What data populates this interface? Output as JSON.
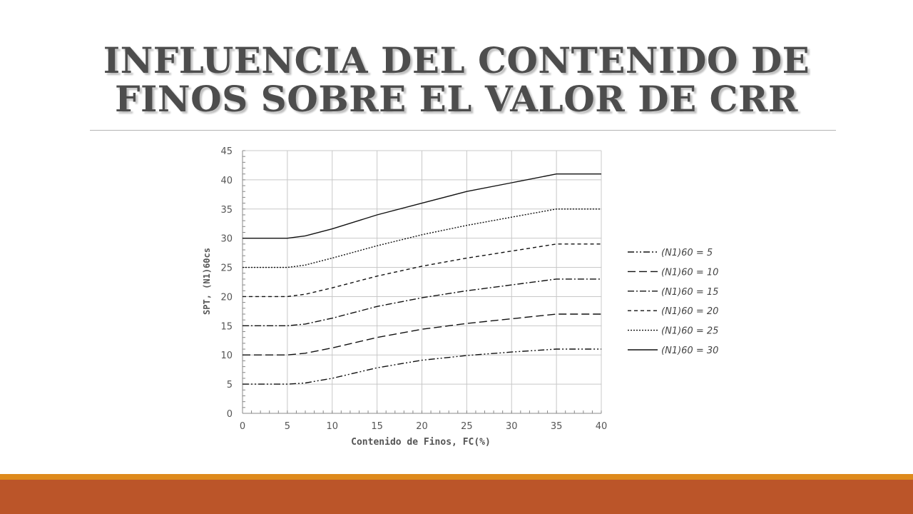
{
  "slide": {
    "title_line1": "INFLUENCIA DEL CONTENIDO DE",
    "title_line2": "FINOS SOBRE EL VALOR DE CRR"
  },
  "colors": {
    "title": "#4d4d4d",
    "accent_band_top": "#de8a1c",
    "accent_band_bottom": "#bb5529",
    "grid": "#c8c8c8",
    "line": "#111111"
  },
  "chart_data": {
    "type": "line",
    "title": "",
    "xlabel": "Contenido de Finos, FC(%)",
    "ylabel": "SPT, (N1)60cs",
    "xlim": [
      0,
      40
    ],
    "ylim": [
      0,
      45
    ],
    "xticks": [
      0,
      5,
      10,
      15,
      20,
      25,
      30,
      35,
      40
    ],
    "yticks": [
      0,
      5,
      10,
      15,
      20,
      25,
      30,
      35,
      40,
      45
    ],
    "grid": true,
    "legend_position": "right",
    "series": [
      {
        "name": "(N1)60 = 5",
        "dash": "dash-dot-dot",
        "x": [
          0,
          5,
          7,
          10,
          15,
          20,
          25,
          30,
          35,
          40
        ],
        "y": [
          5,
          5,
          5.2,
          6,
          7.8,
          9.1,
          9.9,
          10.5,
          11,
          11
        ]
      },
      {
        "name": "(N1)60 = 10",
        "dash": "long-dash",
        "x": [
          0,
          5,
          7,
          10,
          15,
          20,
          25,
          30,
          35,
          40
        ],
        "y": [
          10,
          10,
          10.3,
          11.2,
          13,
          14.4,
          15.4,
          16.2,
          17,
          17
        ]
      },
      {
        "name": "(N1)60 = 15",
        "dash": "dash-dot",
        "x": [
          0,
          5,
          7,
          10,
          15,
          20,
          25,
          30,
          35,
          40
        ],
        "y": [
          15,
          15,
          15.3,
          16.3,
          18.3,
          19.8,
          21,
          22,
          23,
          23
        ]
      },
      {
        "name": "(N1)60 = 20",
        "dash": "dash",
        "x": [
          0,
          5,
          7,
          10,
          15,
          20,
          25,
          30,
          35,
          40
        ],
        "y": [
          20,
          20,
          20.4,
          21.5,
          23.5,
          25.2,
          26.6,
          27.8,
          29,
          29
        ]
      },
      {
        "name": "(N1)60 = 25",
        "dash": "dot",
        "x": [
          0,
          5,
          7,
          10,
          15,
          20,
          25,
          30,
          35,
          40
        ],
        "y": [
          25,
          25,
          25.4,
          26.6,
          28.7,
          30.6,
          32.2,
          33.6,
          35,
          35
        ]
      },
      {
        "name": "(N1)60 = 30",
        "dash": "solid",
        "x": [
          0,
          5,
          7,
          10,
          15,
          20,
          25,
          30,
          35,
          40
        ],
        "y": [
          30,
          30,
          30.4,
          31.6,
          34,
          36,
          38,
          39.5,
          41,
          41
        ]
      }
    ]
  }
}
